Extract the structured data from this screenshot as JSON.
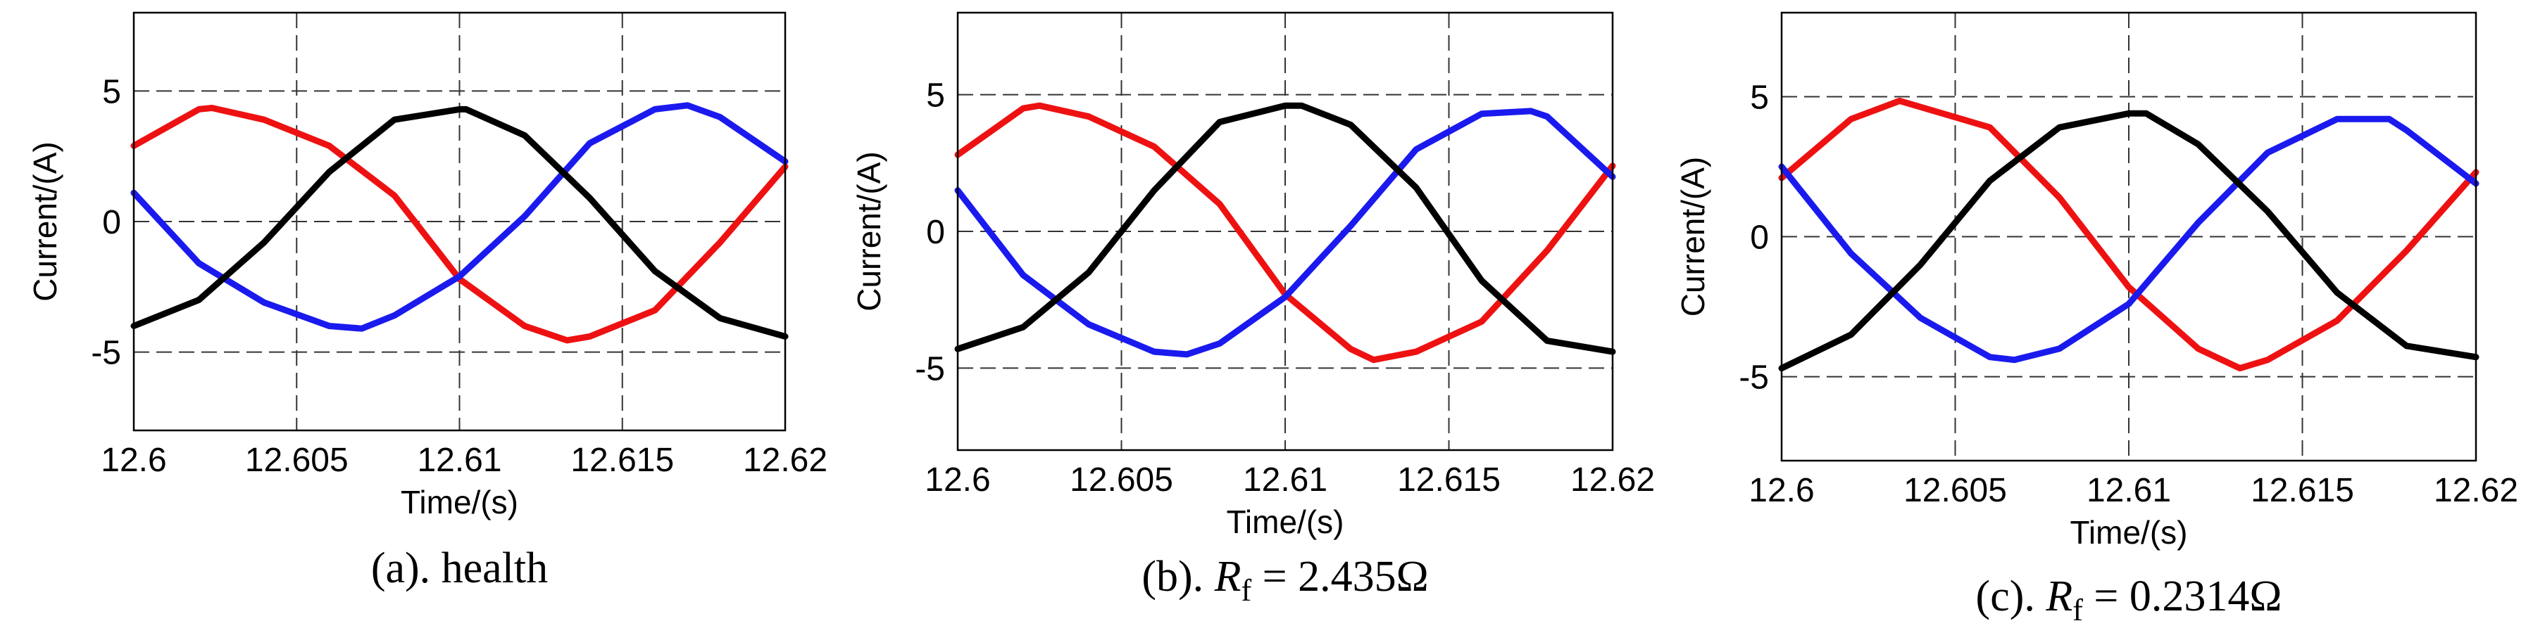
{
  "colors": {
    "phase_a": "#ee1111",
    "phase_b": "#1a1aee",
    "phase_c": "#000000"
  },
  "chart_data": [
    {
      "type": "line",
      "caption": "(a). health",
      "caption_parts": [
        "(a). health"
      ],
      "xlabel": "Time/(s)",
      "ylabel": "Current/(A)",
      "xlim": [
        12.6,
        12.62
      ],
      "ylim": [
        -8,
        8
      ],
      "xticks": [
        "12.6",
        "12.605",
        "12.61",
        "12.615",
        "12.62"
      ],
      "yticks": [
        "-5",
        "0",
        "5"
      ],
      "grid": true,
      "series": [
        {
          "color": "#ee1111",
          "x": [
            12.6,
            12.602,
            12.6024,
            12.604,
            12.606,
            12.608,
            12.61,
            12.612,
            12.6133,
            12.614,
            12.616,
            12.618,
            12.62
          ],
          "y": [
            2.9,
            4.3,
            4.35,
            3.9,
            2.9,
            1.0,
            -2.2,
            -4.0,
            -4.55,
            -4.4,
            -3.4,
            -0.8,
            2.1
          ]
        },
        {
          "color": "#1a1aee",
          "x": [
            12.6,
            12.602,
            12.604,
            12.606,
            12.607,
            12.608,
            12.61,
            12.612,
            12.614,
            12.616,
            12.617,
            12.618,
            12.62
          ],
          "y": [
            1.1,
            -1.6,
            -3.1,
            -4.0,
            -4.1,
            -3.6,
            -2.1,
            0.2,
            3.0,
            4.3,
            4.45,
            4.0,
            2.3
          ]
        },
        {
          "color": "#000000",
          "x": [
            12.6,
            12.602,
            12.604,
            12.606,
            12.608,
            12.61,
            12.6102,
            12.612,
            12.614,
            12.616,
            12.618,
            12.62
          ],
          "y": [
            -4.0,
            -3.0,
            -0.8,
            1.9,
            3.9,
            4.3,
            4.3,
            3.3,
            0.9,
            -1.9,
            -3.7,
            -4.4
          ]
        }
      ]
    },
    {
      "type": "line",
      "caption": "(b). Rf = 2.435Ω",
      "caption_parts": [
        "(b). ",
        "R",
        "f",
        " = 2.435Ω"
      ],
      "xlabel": "Time/(s)",
      "ylabel": "Current/(A)",
      "xlim": [
        12.6,
        12.62
      ],
      "ylim": [
        -8,
        8
      ],
      "xticks": [
        "12.6",
        "12.605",
        "12.61",
        "12.615",
        "12.62"
      ],
      "yticks": [
        "-5",
        "0",
        "5"
      ],
      "grid": true,
      "series": [
        {
          "color": "#ee1111",
          "x": [
            12.6,
            12.602,
            12.6025,
            12.604,
            12.606,
            12.608,
            12.61,
            12.612,
            12.6127,
            12.614,
            12.616,
            12.618,
            12.62
          ],
          "y": [
            2.8,
            4.5,
            4.6,
            4.2,
            3.1,
            1.0,
            -2.3,
            -4.3,
            -4.7,
            -4.4,
            -3.3,
            -0.7,
            2.4
          ]
        },
        {
          "color": "#1a1aee",
          "x": [
            12.6,
            12.602,
            12.604,
            12.606,
            12.607,
            12.608,
            12.61,
            12.612,
            12.614,
            12.616,
            12.6175,
            12.618,
            12.62
          ],
          "y": [
            1.5,
            -1.6,
            -3.4,
            -4.4,
            -4.5,
            -4.1,
            -2.4,
            0.2,
            3.0,
            4.3,
            4.4,
            4.2,
            2.0
          ]
        },
        {
          "color": "#000000",
          "x": [
            12.6,
            12.602,
            12.604,
            12.606,
            12.608,
            12.61,
            12.6105,
            12.612,
            12.614,
            12.616,
            12.618,
            12.62
          ],
          "y": [
            -4.3,
            -3.5,
            -1.5,
            1.5,
            4.0,
            4.6,
            4.6,
            3.9,
            1.6,
            -1.8,
            -4.0,
            -4.4
          ]
        }
      ]
    },
    {
      "type": "line",
      "caption": "(c). Rf = 0.2314Ω",
      "caption_parts": [
        "(c). ",
        "R",
        "f",
        " = 0.2314Ω"
      ],
      "xlabel": "Time/(s)",
      "ylabel": "Current/(A)",
      "xlim": [
        12.6,
        12.62
      ],
      "ylim": [
        -8,
        8
      ],
      "xticks": [
        "12.6",
        "12.605",
        "12.61",
        "12.615",
        "12.62"
      ],
      "yticks": [
        "-5",
        "0",
        "5"
      ],
      "grid": true,
      "series": [
        {
          "color": "#ee1111",
          "x": [
            12.6,
            12.602,
            12.6034,
            12.606,
            12.608,
            12.61,
            12.612,
            12.6132,
            12.614,
            12.616,
            12.618,
            12.62
          ],
          "y": [
            2.1,
            4.2,
            4.85,
            3.9,
            1.4,
            -1.8,
            -4.0,
            -4.7,
            -4.4,
            -3.0,
            -0.5,
            2.3
          ]
        },
        {
          "color": "#1a1aee",
          "x": [
            12.6,
            12.602,
            12.604,
            12.606,
            12.6067,
            12.608,
            12.61,
            12.612,
            12.614,
            12.616,
            12.6175,
            12.618,
            12.62
          ],
          "y": [
            2.5,
            -0.6,
            -2.9,
            -4.3,
            -4.4,
            -4.0,
            -2.4,
            0.5,
            3.0,
            4.2,
            4.2,
            3.8,
            1.9
          ]
        },
        {
          "color": "#000000",
          "x": [
            12.6,
            12.602,
            12.604,
            12.606,
            12.608,
            12.61,
            12.6105,
            12.612,
            12.614,
            12.616,
            12.618,
            12.62
          ],
          "y": [
            -4.7,
            -3.5,
            -1.0,
            2.0,
            3.9,
            4.4,
            4.4,
            3.3,
            0.9,
            -2.0,
            -3.9,
            -4.3
          ]
        }
      ]
    }
  ]
}
